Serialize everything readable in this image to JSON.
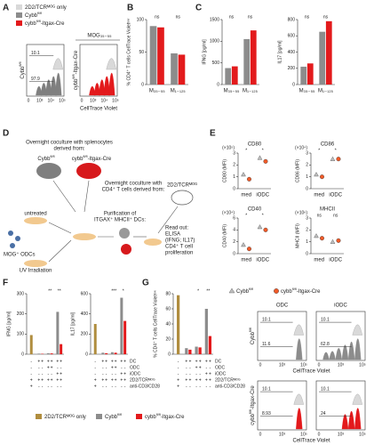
{
  "panel_letters": [
    "A",
    "B",
    "C",
    "D",
    "E",
    "F",
    "G"
  ],
  "legend_a": [
    {
      "text": "2D2/TCRᴹᴼᴳ only",
      "color": "#d9d9d9"
    },
    {
      "text": "Cybb",
      "sup": "fl/fl",
      "color": "#8c8c8c"
    },
    {
      "text": "cybb",
      "sup": "fl/fl",
      "suffix": "-Itgax-Cre",
      "color": "#e31a1c"
    }
  ],
  "panel_a": {
    "peptide": "MOG₃₅₋₅₅",
    "samples": [
      {
        "text": "Cybb",
        "sup": "fl/fl"
      },
      {
        "text": "cybb",
        "sup": "fl/fl",
        "suffix": "-Itgax-Cre"
      }
    ],
    "gates": [
      "10.1",
      "97.9"
    ],
    "x_ticks": [
      "0",
      "10³",
      "10⁴",
      "10⁵"
    ],
    "x_label": "CellTrace Violet"
  },
  "panel_d": {
    "splenocytes": [
      "Overnight coculture with splenocytes",
      "derived from:"
    ],
    "mice": [
      {
        "text": "Cybb",
        "sup": "fl/fl"
      },
      {
        "text": "cybb",
        "sup": "fl/fl",
        "suffix": "-Itgax-Cre"
      }
    ],
    "tcells": [
      "Overnight coculture with",
      "CD4⁺ T cells derived from:"
    ],
    "tcell_mouse": "2D2/TCRᴹᴼᴳ",
    "untreated": "untreated",
    "odcs": "MOG⁺ ODCs",
    "uv": "UV Irradiation",
    "purification": [
      "Purification of",
      "ITGAX⁺ MHCII⁺ DCs:"
    ],
    "readout": [
      "Read out:",
      "ELISA",
      "(IFNG; IL17)",
      "CD4⁺ T cell",
      "proliferation"
    ]
  },
  "legend_e": [
    {
      "text": "Cybb",
      "sup": "fl/fl",
      "marker": "triangle",
      "color": "#bdbdbd"
    },
    {
      "text": "cybb",
      "sup": "fl/fl",
      "suffix": "-Itgax-Cre",
      "marker": "circle",
      "color": "#f05a28"
    }
  ],
  "conditions": {
    "labels": [
      "DC",
      "ODC",
      "iODC",
      "2D2/TCRᴹᴼᴳ",
      "anti-CD3/CD28"
    ],
    "rows": [
      [
        "-",
        "+",
        "+",
        "+",
        "+",
        "+",
        "+"
      ],
      [
        "-",
        "-",
        "-",
        "+",
        "+",
        "-",
        "-"
      ],
      [
        "-",
        "-",
        "-",
        "-",
        "-",
        "+",
        "+"
      ],
      [
        "+",
        "+",
        "+",
        "+",
        "+",
        "+",
        "+"
      ],
      [
        "+",
        "-",
        "-",
        "-",
        "-",
        "-",
        "-"
      ]
    ]
  },
  "legend_fg": [
    {
      "text": "2D2/TCRᴹᴼᴳ only",
      "color": "#b08d3e"
    },
    {
      "text": "Cybb",
      "sup": "fl/fl",
      "color": "#8c8c8c"
    },
    {
      "text": "cybb",
      "sup": "fl/fl",
      "suffix": "-Itgax-Cre",
      "color": "#e31a1c"
    }
  ],
  "panel_g_hist": {
    "columns": [
      "ODC",
      "iODC"
    ],
    "rows": [
      {
        "text": "Cybb",
        "sup": "fl/fl"
      },
      {
        "text": "cybb",
        "sup": "fl/fl",
        "suffix": "-Itgax-Cre"
      }
    ],
    "gates": [
      [
        [
          "10.1",
          "11.6"
        ],
        [
          "10.1",
          "62.8"
        ]
      ],
      [
        [
          "10.1",
          "8.93"
        ],
        [
          "10.1",
          "24"
        ]
      ]
    ],
    "x_ticks": [
      "0",
      "10³",
      "10⁵"
    ],
    "x_label": "CellTrace Violet"
  },
  "chart_data": [
    {
      "type": "bar",
      "ylabel": "% CD4⁺ T cells CellTrace Violetˡᵒʷ",
      "categories": [
        "M₃₅₋₅₅",
        "M₁₋₁₂₅"
      ],
      "series": [
        {
          "color": "#8c8c8c",
          "values": [
            90,
            48
          ]
        },
        {
          "color": "#e31a1c",
          "values": [
            88,
            46
          ]
        }
      ],
      "ylim": [
        0,
        100
      ],
      "yticks": [
        0,
        50,
        100
      ],
      "annotations": [
        "ns",
        "ns"
      ]
    },
    {
      "type": "bar",
      "ylabel": "IFNG [pg/ml]",
      "categories": [
        "M₃₅₋₅₅",
        "M₁₋₁₂₅"
      ],
      "series": [
        {
          "color": "#8c8c8c",
          "values": [
            380,
            1050
          ]
        },
        {
          "color": "#e31a1c",
          "values": [
            420,
            1250
          ]
        }
      ],
      "ylim": [
        0,
        1500
      ],
      "yticks": [
        0,
        500,
        1000,
        1500
      ],
      "annotations": [
        "ns",
        "ns"
      ]
    },
    {
      "type": "bar",
      "ylabel": "IL17 [pg/ml]",
      "categories": [
        "M₃₅₋₅₅",
        "M₁₋₁₂₅"
      ],
      "series": [
        {
          "color": "#8c8c8c",
          "values": [
            220,
            650
          ]
        },
        {
          "color": "#e31a1c",
          "values": [
            260,
            780
          ]
        }
      ],
      "ylim": [
        0,
        800
      ],
      "yticks": [
        0,
        200,
        400,
        600,
        800
      ],
      "annotations": [
        "ns",
        "ns"
      ]
    },
    {
      "type": "scatter",
      "title": "CD80",
      "multiplier": "(×10⁵)",
      "ylabel": "CD80 (MFI)",
      "categories": [
        "med",
        "iODC"
      ],
      "series": [
        {
          "color": "#bdbdbd",
          "marker": "triangle",
          "values": [
            1.2,
            2.6
          ]
        },
        {
          "color": "#f05a28",
          "marker": "circle",
          "values": [
            0.8,
            2.3
          ]
        }
      ],
      "ylim": [
        0,
        3
      ],
      "yticks": [
        0,
        1,
        2,
        3
      ],
      "annotations": [
        "*",
        "*"
      ]
    },
    {
      "type": "scatter",
      "title": "CD86",
      "multiplier": "(×10⁴)",
      "ylabel": "CD86 (MFI)",
      "categories": [
        "med",
        "iODC"
      ],
      "series": [
        {
          "color": "#bdbdbd",
          "marker": "triangle",
          "values": [
            1.2,
            2.5
          ]
        },
        {
          "color": "#f05a28",
          "marker": "circle",
          "values": [
            1.0,
            2.5
          ]
        }
      ],
      "ylim": [
        0,
        3
      ],
      "yticks": [
        0,
        1,
        2,
        3
      ],
      "annotations": [
        "*",
        "*"
      ]
    },
    {
      "type": "scatter",
      "title": "CD40",
      "multiplier": "(×10⁴)",
      "ylabel": "CD40 (MFI)",
      "categories": [
        "med",
        "iODC"
      ],
      "series": [
        {
          "color": "#bdbdbd",
          "marker": "triangle",
          "values": [
            1.5,
            4.5
          ]
        },
        {
          "color": "#f05a28",
          "marker": "circle",
          "values": [
            0.8,
            4.0
          ]
        }
      ],
      "ylim": [
        0,
        6
      ],
      "yticks": [
        0,
        2,
        4,
        6
      ],
      "annotations": [
        "*",
        "*"
      ]
    },
    {
      "type": "scatter",
      "title": "MHCII",
      "multiplier": "(×10⁶)",
      "ylabel": "MHCII (MFI)",
      "categories": [
        "med",
        "iODC"
      ],
      "series": [
        {
          "color": "#bdbdbd",
          "marker": "triangle",
          "values": [
            1.5,
            1.0
          ]
        },
        {
          "color": "#f05a28",
          "marker": "circle",
          "values": [
            1.3,
            1.1
          ]
        }
      ],
      "ylim": [
        0,
        3
      ],
      "yticks": [
        0,
        1,
        2,
        3
      ],
      "annotations": [
        "ns",
        "ns"
      ]
    },
    {
      "type": "bar",
      "ylabel": "IFNG [pg/ml]",
      "categories": [
        null,
        null,
        null,
        null
      ],
      "series": [
        {
          "color": "#b08d3e",
          "values": [
            95,
            null,
            null,
            null
          ]
        },
        {
          "color": "#8c8c8c",
          "values": [
            null,
            3,
            5,
            210
          ]
        },
        {
          "color": "#e31a1c",
          "values": [
            null,
            2,
            4,
            50
          ]
        }
      ],
      "ylim": [
        0,
        300
      ],
      "yticks": [
        0,
        100,
        200,
        300
      ],
      "annotations": [
        "**",
        "**"
      ]
    },
    {
      "type": "bar",
      "ylabel": "IL17 [pg/ml]",
      "categories": [
        null,
        null,
        null,
        null
      ],
      "series": [
        {
          "color": "#b08d3e",
          "values": [
            300,
            null,
            null,
            null
          ]
        },
        {
          "color": "#8c8c8c",
          "values": [
            null,
            15,
            20,
            560
          ]
        },
        {
          "color": "#e31a1c",
          "values": [
            null,
            10,
            15,
            330
          ]
        }
      ],
      "ylim": [
        0,
        600
      ],
      "yticks": [
        0,
        200,
        400,
        600
      ],
      "annotations": [
        "***",
        "*"
      ]
    },
    {
      "type": "bar",
      "ylabel": "% CD4⁺ T cells CellTrace Violetˡᵒʷ",
      "categories": [
        null,
        null,
        null,
        null
      ],
      "series": [
        {
          "color": "#b08d3e",
          "values": [
            78,
            null,
            null,
            null
          ]
        },
        {
          "color": "#8c8c8c",
          "values": [
            null,
            8,
            10,
            60
          ]
        },
        {
          "color": "#e31a1c",
          "values": [
            null,
            6,
            9,
            24
          ]
        }
      ],
      "ylim": [
        0,
        80
      ],
      "yticks": [
        0,
        20,
        40,
        60,
        80
      ],
      "annotations": [
        "*",
        "**"
      ]
    }
  ]
}
